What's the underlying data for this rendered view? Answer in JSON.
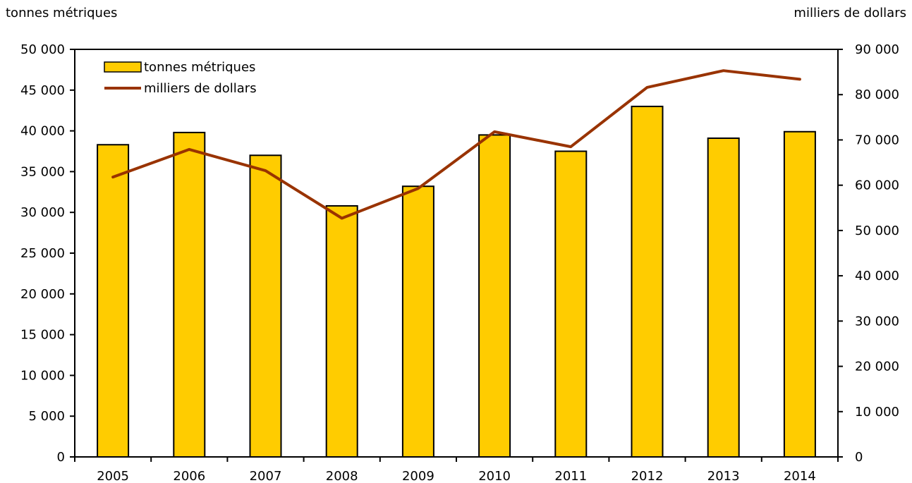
{
  "chart_data": {
    "type": "bar",
    "title": "",
    "xlabel": "",
    "ylabel": "tonnes métriques",
    "y2label": "milliers de dollars",
    "categories": [
      "2005",
      "2006",
      "2007",
      "2008",
      "2009",
      "2010",
      "2011",
      "2012",
      "2013",
      "2014"
    ],
    "series": [
      {
        "name": "tonnes métriques",
        "type": "bar",
        "axis": "left",
        "color": "#FFCC00",
        "values": [
          38300,
          39800,
          37000,
          30800,
          33200,
          39500,
          37500,
          43000,
          39100,
          39900
        ]
      },
      {
        "name": "milliers de dollars",
        "type": "line",
        "axis": "right",
        "color": "#993300",
        "values": [
          61800,
          67900,
          63200,
          52700,
          59300,
          71800,
          68500,
          81600,
          85300,
          83400
        ]
      }
    ],
    "ylim": [
      0,
      50000
    ],
    "y2lim": [
      0,
      90000
    ],
    "yticks": [
      0,
      5000,
      10000,
      15000,
      20000,
      25000,
      30000,
      35000,
      40000,
      45000,
      50000
    ],
    "y2ticks": [
      0,
      10000,
      20000,
      30000,
      40000,
      50000,
      60000,
      70000,
      80000,
      90000
    ],
    "ytick_labels": [
      "0",
      "5 000",
      "10 000",
      "15 000",
      "20 000",
      "25 000",
      "30 000",
      "35 000",
      "40 000",
      "45 000",
      "50 000"
    ],
    "y2tick_labels": [
      "0",
      "10 000",
      "20 000",
      "30 000",
      "40 000",
      "50 000",
      "60 000",
      "70 000",
      "80 000",
      "90 000"
    ],
    "legend_position": "top-left",
    "grid": false
  }
}
